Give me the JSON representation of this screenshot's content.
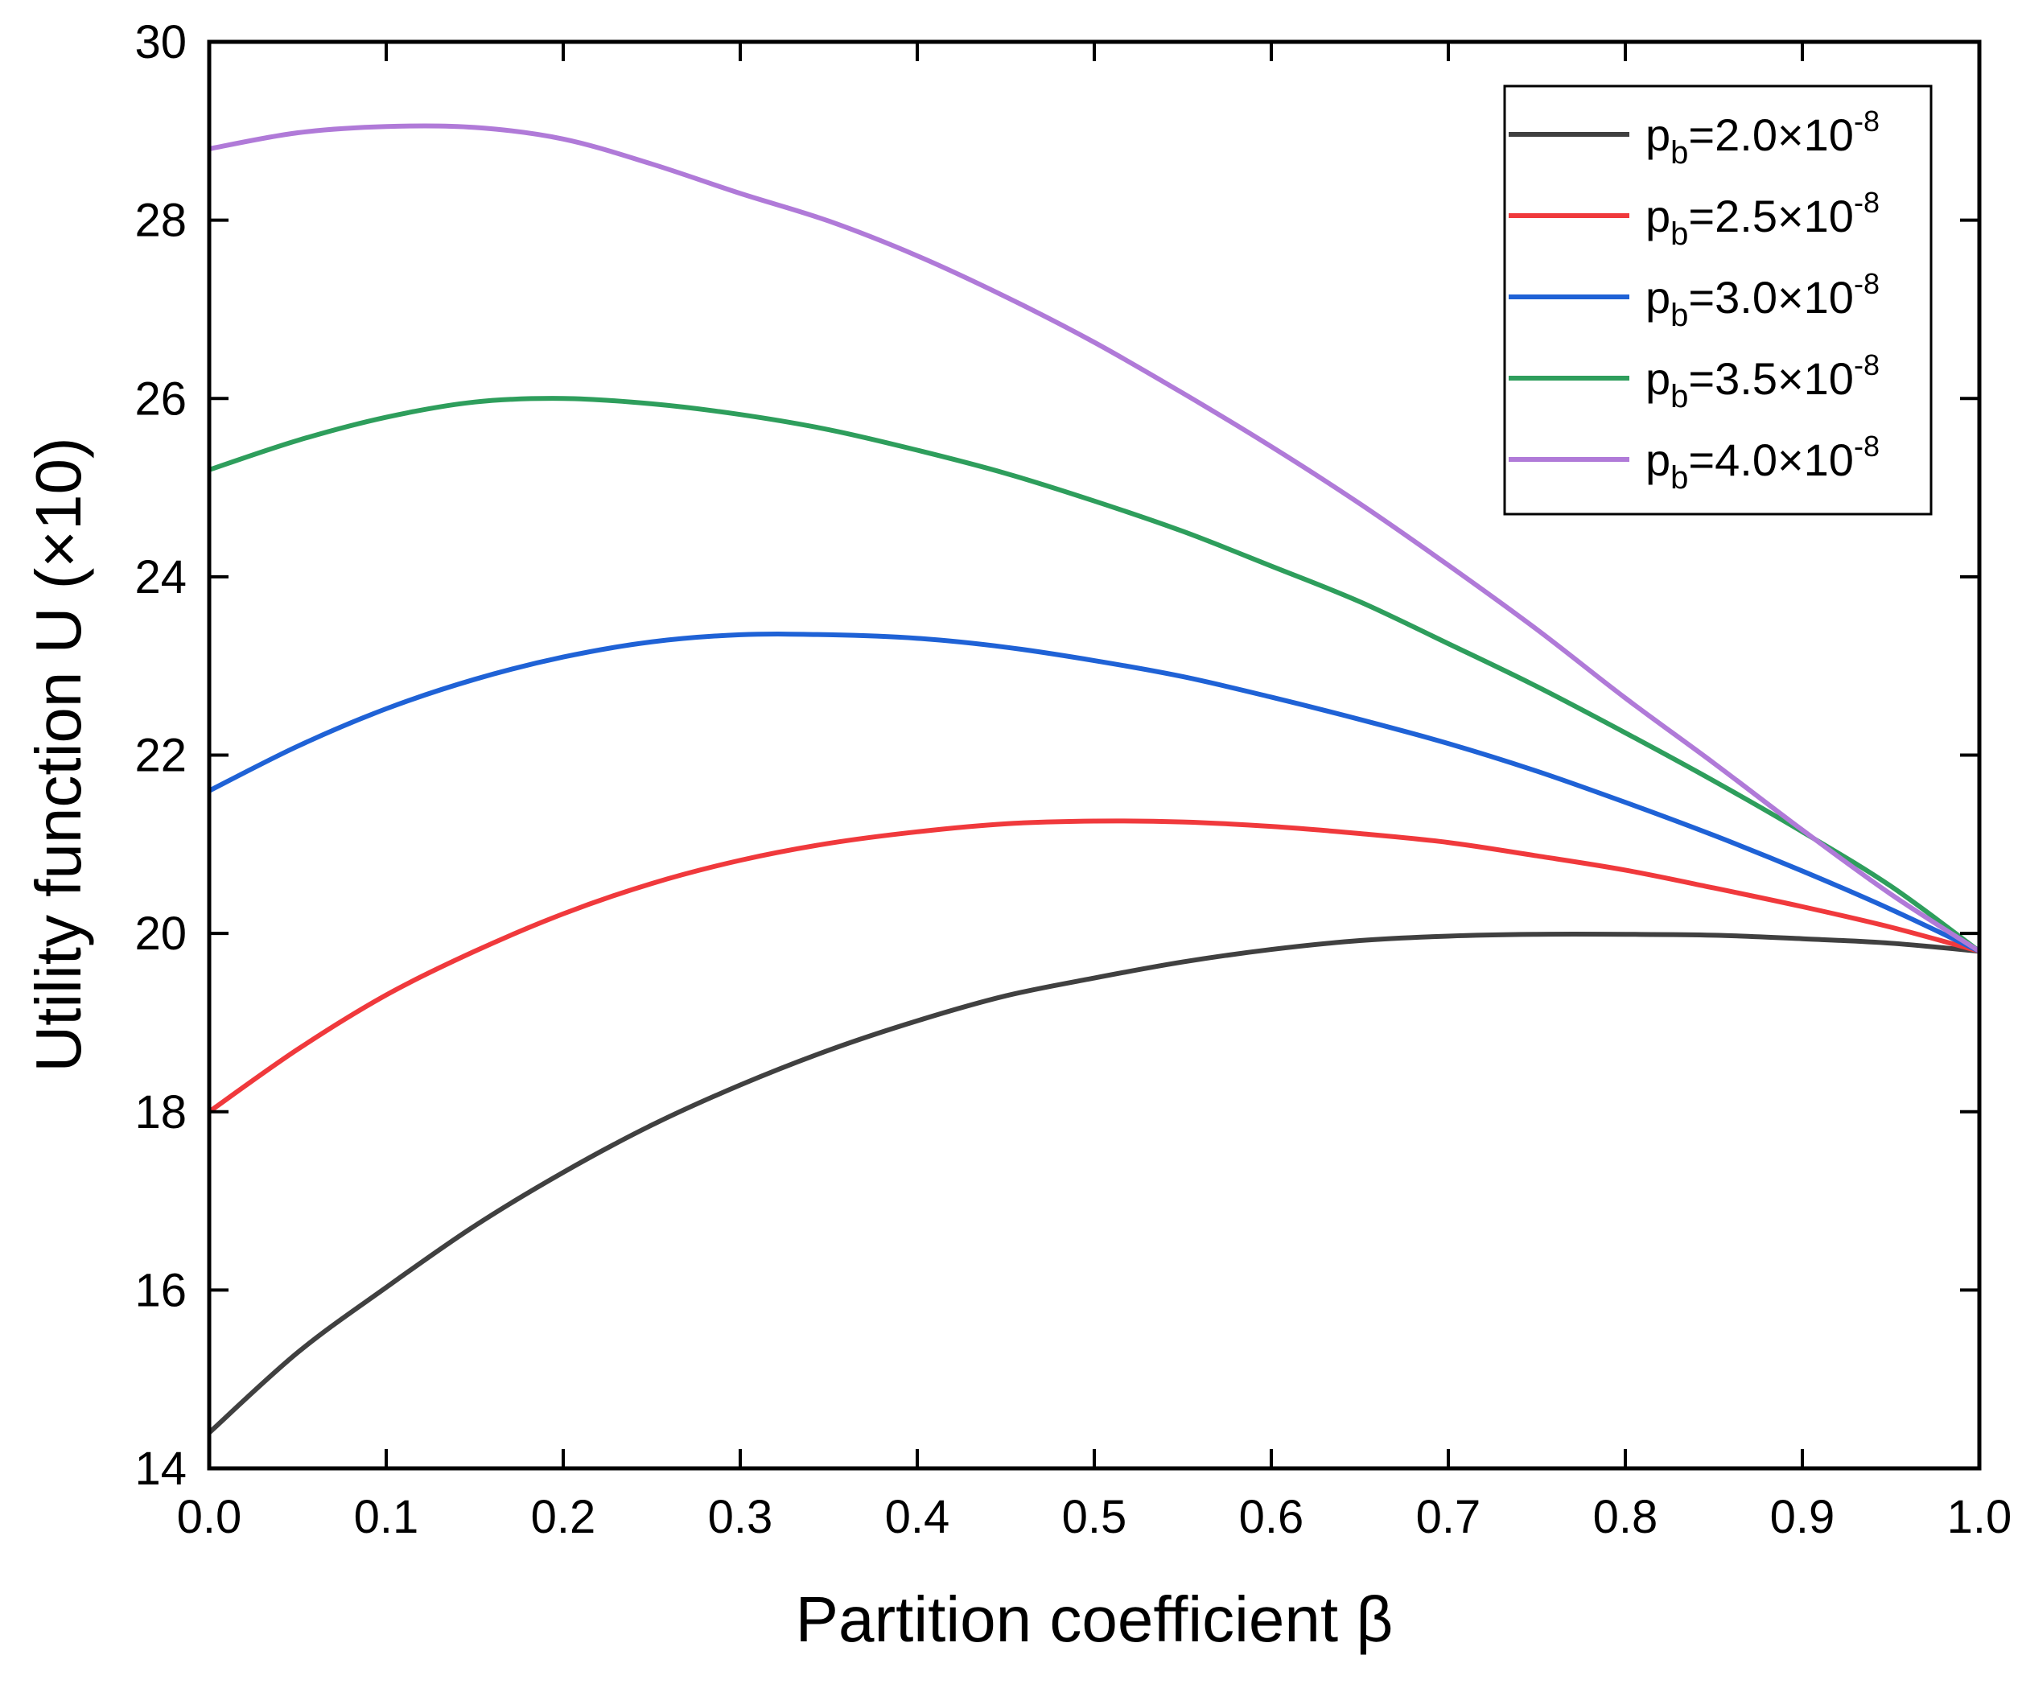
{
  "chart_data": {
    "type": "line",
    "xlabel": "Partition coefficient β",
    "ylabel": "Utility function U (×10)",
    "xlim": [
      0.0,
      1.0
    ],
    "ylim": [
      14,
      30
    ],
    "x_ticks": [
      "0.0",
      "0.1",
      "0.2",
      "0.3",
      "0.4",
      "0.5",
      "0.6",
      "0.7",
      "0.8",
      "0.9",
      "1.0"
    ],
    "y_ticks": [
      "14",
      "16",
      "18",
      "20",
      "22",
      "24",
      "26",
      "28",
      "30"
    ],
    "grid": false,
    "legend_position": "top-right",
    "x": [
      0.0,
      0.05,
      0.1,
      0.15,
      0.2,
      0.25,
      0.3,
      0.35,
      0.4,
      0.45,
      0.5,
      0.55,
      0.6,
      0.65,
      0.7,
      0.75,
      0.8,
      0.85,
      0.9,
      0.95,
      1.0
    ],
    "series": [
      {
        "legend": {
          "base": "p",
          "sub": "b",
          "text": "=2.0×10",
          "sup": "-8"
        },
        "color": "#404040",
        "values": [
          14.4,
          15.3,
          16.03,
          16.72,
          17.32,
          17.85,
          18.3,
          18.69,
          19.02,
          19.3,
          19.5,
          19.68,
          19.82,
          19.92,
          19.97,
          19.99,
          19.99,
          19.98,
          19.94,
          19.89,
          19.8
        ]
      },
      {
        "legend": {
          "base": "p",
          "sub": "b",
          "text": "=2.5×10",
          "sup": "-8"
        },
        "color": "#f0393c",
        "values": [
          18.0,
          18.7,
          19.31,
          19.8,
          20.22,
          20.56,
          20.82,
          21.01,
          21.14,
          21.23,
          21.26,
          21.25,
          21.2,
          21.12,
          21.02,
          20.87,
          20.71,
          20.51,
          20.3,
          20.07,
          19.8
        ]
      },
      {
        "legend": {
          "base": "p",
          "sub": "b",
          "text": "=3.0×10",
          "sup": "-8"
        },
        "color": "#1f62d6",
        "values": [
          21.6,
          22.1,
          22.52,
          22.85,
          23.1,
          23.27,
          23.35,
          23.35,
          23.31,
          23.21,
          23.06,
          22.88,
          22.65,
          22.4,
          22.13,
          21.82,
          21.47,
          21.1,
          20.7,
          20.27,
          19.8
        ]
      },
      {
        "legend": {
          "base": "p",
          "sub": "b",
          "text": "=3.5×10",
          "sup": "-8"
        },
        "color": "#2e9e5c",
        "values": [
          25.2,
          25.53,
          25.79,
          25.96,
          26.0,
          25.94,
          25.82,
          25.65,
          25.42,
          25.16,
          24.85,
          24.51,
          24.12,
          23.72,
          23.25,
          22.77,
          22.25,
          21.71,
          21.14,
          20.53,
          19.8
        ]
      },
      {
        "legend": {
          "base": "p",
          "sub": "b",
          "text": "=4.0×10",
          "sup": "-8"
        },
        "color": "#b07ad8",
        "values": [
          28.8,
          28.98,
          29.05,
          29.04,
          28.91,
          28.63,
          28.3,
          27.99,
          27.6,
          27.14,
          26.63,
          26.06,
          25.46,
          24.82,
          24.13,
          23.41,
          22.64,
          21.91,
          21.16,
          20.44,
          19.8
        ]
      }
    ]
  }
}
